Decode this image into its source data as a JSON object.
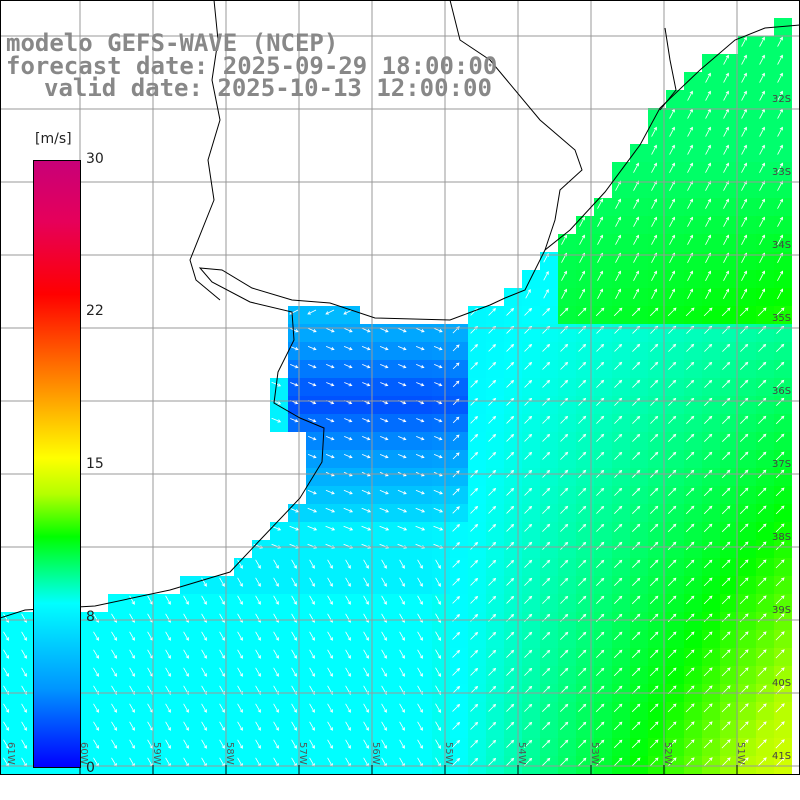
{
  "titles": {
    "model": "modelo GEFS-WAVE (NCEP)",
    "forecast": "forecast date: 2025-09-29 18:00:00",
    "valid": "valid date: 2025-10-13 12:00:00"
  },
  "colorbar": {
    "unit": "[m/s]",
    "ticks": [
      "30",
      "22",
      "15",
      "8",
      "0"
    ],
    "range": [
      0,
      30
    ]
  },
  "lat_labels": [
    "32S",
    "33S",
    "34S",
    "35S",
    "36S",
    "37S",
    "38S",
    "39S",
    "40S",
    "41S"
  ],
  "lon_labels": [
    "61W",
    "60W",
    "59W",
    "58W",
    "57W",
    "56W",
    "55W",
    "54W",
    "53W",
    "52W",
    "51W"
  ],
  "colors": {
    "land": "#ffffff",
    "grid": "#999999",
    "coast": "#000000",
    "arrow": "#ffffff"
  }
}
